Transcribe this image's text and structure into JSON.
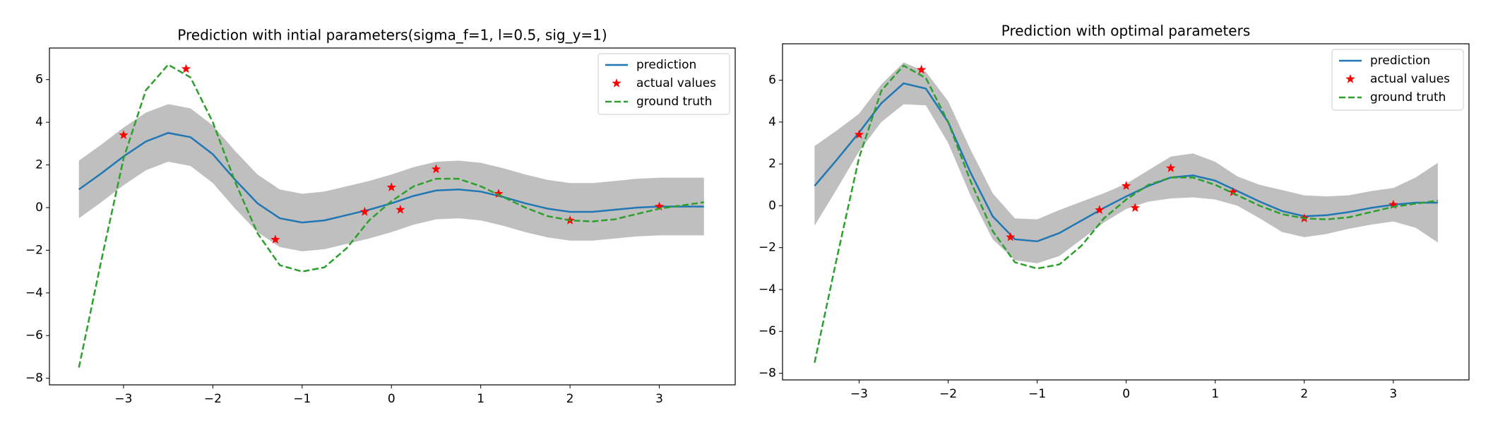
{
  "chart_data": [
    {
      "type": "line",
      "title": "Prediction with intial parameters(sigma_f=1, l=0.5, sig_y=1)",
      "xlim": [
        -3.83,
        3.85
      ],
      "ylim": [
        -8.31,
        7.48
      ],
      "xticks": [
        {
          "value": -3,
          "label": "−3"
        },
        {
          "value": -2,
          "label": "−2"
        },
        {
          "value": -1,
          "label": "−1"
        },
        0,
        1,
        2,
        3
      ],
      "yticks": [
        {
          "value": -8,
          "label": "−8"
        },
        {
          "value": -6,
          "label": "−6"
        },
        {
          "value": -4,
          "label": "−4"
        },
        {
          "value": -2,
          "label": "−2"
        },
        0,
        2,
        4,
        6
      ],
      "legend": "upper right",
      "band": {
        "color": "#bfbfbf",
        "x": [
          -3.5,
          -3.25,
          -3,
          -2.75,
          -2.5,
          -2.25,
          -2,
          -1.75,
          -1.5,
          -1.25,
          -1,
          -0.75,
          -0.5,
          -0.25,
          0,
          0.25,
          0.5,
          0.75,
          1,
          1.25,
          1.5,
          1.75,
          2,
          2.25,
          2.5,
          2.75,
          3,
          3.25,
          3.5
        ],
        "upper": [
          2.2,
          2.95,
          3.75,
          4.45,
          4.85,
          4.65,
          3.85,
          2.65,
          1.55,
          0.85,
          0.65,
          0.75,
          1.0,
          1.25,
          1.55,
          1.9,
          2.15,
          2.2,
          2.1,
          1.85,
          1.55,
          1.3,
          1.15,
          1.15,
          1.25,
          1.35,
          1.4,
          1.4,
          1.4
        ],
        "lower": [
          -0.5,
          0.25,
          1.05,
          1.75,
          2.15,
          1.95,
          1.15,
          -0.05,
          -1.15,
          -1.85,
          -2.05,
          -1.95,
          -1.7,
          -1.45,
          -1.15,
          -0.8,
          -0.55,
          -0.5,
          -0.6,
          -0.85,
          -1.15,
          -1.4,
          -1.55,
          -1.55,
          -1.45,
          -1.35,
          -1.3,
          -1.3,
          -1.3
        ]
      },
      "series": [
        {
          "name": "prediction",
          "kind": "line",
          "color": "#1f77b4",
          "x": [
            -3.5,
            -3.25,
            -3,
            -2.75,
            -2.5,
            -2.25,
            -2,
            -1.75,
            -1.5,
            -1.25,
            -1,
            -0.75,
            -0.5,
            -0.25,
            0,
            0.25,
            0.5,
            0.75,
            1,
            1.25,
            1.5,
            1.75,
            2,
            2.25,
            2.5,
            2.75,
            3,
            3.25,
            3.5
          ],
          "values": [
            0.85,
            1.6,
            2.4,
            3.1,
            3.5,
            3.3,
            2.5,
            1.3,
            0.2,
            -0.5,
            -0.7,
            -0.6,
            -0.35,
            -0.1,
            0.2,
            0.55,
            0.8,
            0.85,
            0.75,
            0.5,
            0.2,
            -0.05,
            -0.2,
            -0.2,
            -0.1,
            0,
            0.05,
            0.05,
            0.05
          ]
        },
        {
          "name": "actual values",
          "kind": "scatter",
          "color": "#ff0000",
          "x": [
            -3,
            -2.3,
            -1.3,
            -0.3,
            0,
            0.1,
            0.5,
            1.2,
            2,
            3
          ],
          "values": [
            3.4,
            6.5,
            -1.5,
            -0.2,
            0.95,
            -0.1,
            1.8,
            0.65,
            -0.6,
            0.05
          ]
        },
        {
          "name": "ground truth",
          "kind": "dashed",
          "color": "#2ca02c",
          "x": [
            -3.5,
            -3.25,
            -3,
            -2.75,
            -2.5,
            -2.25,
            -2,
            -1.75,
            -1.5,
            -1.25,
            -1,
            -0.75,
            -0.5,
            -0.25,
            0,
            0.25,
            0.5,
            0.75,
            1,
            1.25,
            1.5,
            1.75,
            2,
            2.25,
            2.5,
            2.75,
            3,
            3.25,
            3.5
          ],
          "values": [
            -7.5,
            -2.5,
            2.3,
            5.5,
            6.7,
            6.1,
            4.0,
            1.2,
            -1.2,
            -2.7,
            -3.0,
            -2.8,
            -1.9,
            -0.6,
            0.3,
            1.0,
            1.35,
            1.35,
            1.0,
            0.5,
            0.0,
            -0.4,
            -0.6,
            -0.65,
            -0.55,
            -0.3,
            -0.05,
            0.1,
            0.25
          ]
        }
      ]
    },
    {
      "type": "line",
      "title": "Prediction with optimal parameters",
      "xlim": [
        -3.86,
        3.85
      ],
      "ylim": [
        -8.32,
        7.74
      ],
      "xticks": [
        {
          "value": -3,
          "label": "−3"
        },
        {
          "value": -2,
          "label": "−2"
        },
        {
          "value": -1,
          "label": "−1"
        },
        0,
        1,
        2,
        3
      ],
      "yticks": [
        {
          "value": -8,
          "label": "−8"
        },
        {
          "value": -6,
          "label": "−6"
        },
        {
          "value": -4,
          "label": "−4"
        },
        {
          "value": -2,
          "label": "−2"
        },
        0,
        2,
        4,
        6
      ],
      "legend": "upper right",
      "band": {
        "color": "#bfbfbf",
        "x": [
          -3.5,
          -3.25,
          -3,
          -2.75,
          -2.5,
          -2.25,
          -2,
          -1.75,
          -1.5,
          -1.25,
          -1,
          -0.75,
          -0.5,
          -0.25,
          0,
          0.25,
          0.5,
          0.75,
          1,
          1.25,
          1.5,
          1.75,
          2,
          2.25,
          2.5,
          2.75,
          3,
          3.25,
          3.5
        ],
        "upper": [
          2.85,
          3.6,
          4.4,
          5.8,
          6.85,
          6.4,
          5.0,
          2.7,
          0.6,
          -0.6,
          -0.65,
          -0.2,
          0.2,
          0.6,
          1.05,
          1.7,
          2.35,
          2.5,
          2.1,
          1.4,
          1.0,
          0.75,
          0.5,
          0.45,
          0.5,
          0.7,
          0.85,
          1.35,
          2.05
        ],
        "lower": [
          -0.95,
          0.8,
          2.6,
          4.0,
          4.85,
          4.8,
          3.0,
          0.5,
          -1.6,
          -2.6,
          -2.75,
          -2.4,
          -1.6,
          -0.8,
          -0.15,
          0.2,
          0.35,
          0.4,
          0.3,
          0,
          -0.6,
          -1.25,
          -1.5,
          -1.35,
          -1.1,
          -0.9,
          -0.75,
          -1.05,
          -1.75
        ]
      },
      "series": [
        {
          "name": "prediction",
          "kind": "line",
          "color": "#1f77b4",
          "x": [
            -3.5,
            -3.25,
            -3,
            -2.75,
            -2.5,
            -2.25,
            -2,
            -1.75,
            -1.5,
            -1.25,
            -1,
            -0.75,
            -0.5,
            -0.25,
            0,
            0.25,
            0.5,
            0.75,
            1,
            1.25,
            1.5,
            1.75,
            2,
            2.25,
            2.5,
            2.75,
            3,
            3.25,
            3.5
          ],
          "values": [
            0.95,
            2.2,
            3.5,
            4.9,
            5.85,
            5.6,
            4.0,
            1.6,
            -0.5,
            -1.6,
            -1.7,
            -1.3,
            -0.7,
            -0.1,
            0.45,
            0.95,
            1.35,
            1.45,
            1.2,
            0.7,
            0.2,
            -0.25,
            -0.5,
            -0.45,
            -0.3,
            -0.1,
            0.05,
            0.15,
            0.15
          ]
        },
        {
          "name": "actual values",
          "kind": "scatter",
          "color": "#ff0000",
          "x": [
            -3,
            -2.3,
            -1.3,
            -0.3,
            0,
            0.1,
            0.5,
            1.2,
            2,
            3
          ],
          "values": [
            3.4,
            6.5,
            -1.5,
            -0.2,
            0.95,
            -0.1,
            1.8,
            0.65,
            -0.6,
            0.05
          ]
        },
        {
          "name": "ground truth",
          "kind": "dashed",
          "color": "#2ca02c",
          "x": [
            -3.5,
            -3.25,
            -3,
            -2.75,
            -2.5,
            -2.25,
            -2,
            -1.75,
            -1.5,
            -1.25,
            -1,
            -0.75,
            -0.5,
            -0.25,
            0,
            0.25,
            0.5,
            0.75,
            1,
            1.25,
            1.5,
            1.75,
            2,
            2.25,
            2.5,
            2.75,
            3,
            3.25,
            3.5
          ],
          "values": [
            -7.5,
            -2.5,
            2.3,
            5.5,
            6.7,
            6.1,
            4.0,
            1.2,
            -1.2,
            -2.7,
            -3.0,
            -2.8,
            -1.9,
            -0.6,
            0.3,
            1.0,
            1.35,
            1.35,
            1.0,
            0.5,
            0.0,
            -0.4,
            -0.6,
            -0.65,
            -0.55,
            -0.3,
            -0.05,
            0.1,
            0.25
          ]
        }
      ]
    }
  ]
}
